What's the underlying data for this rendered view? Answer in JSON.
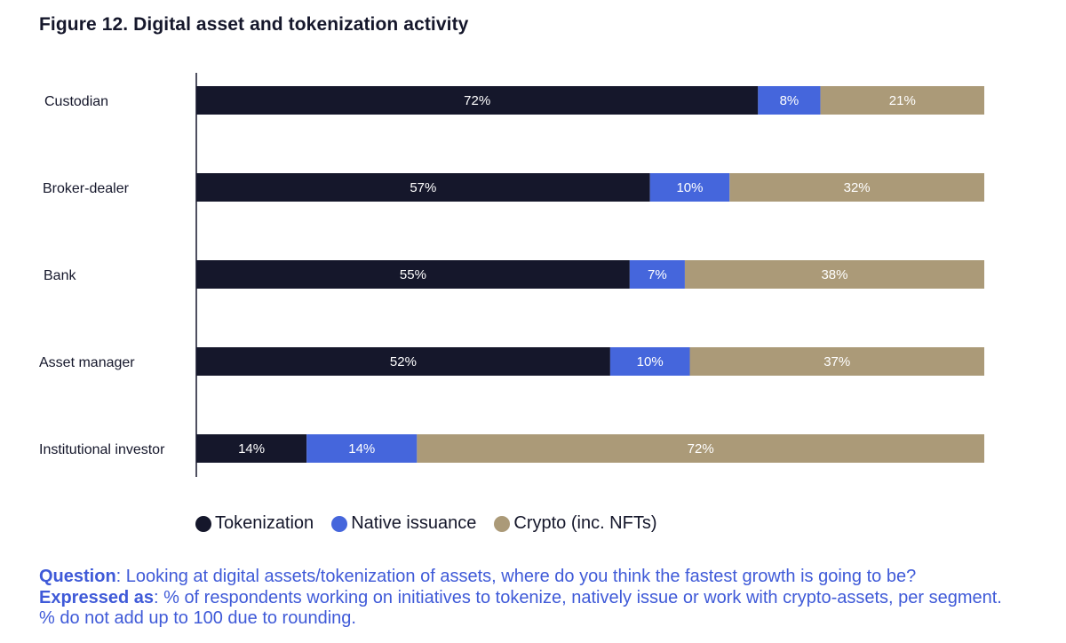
{
  "figure_title": "Figure 12. Digital asset and tokenization activity",
  "colors": {
    "tokenization": "#15172b",
    "native_issuance": "#4566dc",
    "crypto": "#ab9a78",
    "axis": "#15172b",
    "note_text": "#3f5ad8"
  },
  "legend": [
    {
      "label": "Tokenization",
      "color": "#15172b"
    },
    {
      "label": "Native issuance",
      "color": "#4566dc"
    },
    {
      "label": "Crypto (inc. NFTs)",
      "color": "#ab9a78"
    }
  ],
  "note": {
    "question_label": "Question",
    "question_text": ": Looking at digital assets/tokenization of assets, where do you think the fastest growth is going to be? ",
    "expressed_label": "Expressed as",
    "expressed_text": ": % of respondents working on initiatives to tokenize, natively issue or work with crypto-assets, per segment. % do not add up to 100 due to rounding."
  },
  "chart_data": {
    "type": "bar",
    "orientation": "horizontal",
    "stacked": true,
    "title": "Figure 12. Digital asset and tokenization activity",
    "categories": [
      "Custodian",
      "Broker-dealer",
      "Bank",
      "Asset manager",
      "Institutional investor"
    ],
    "series": [
      {
        "name": "Tokenization",
        "values": [
          72,
          57,
          55,
          52,
          14
        ],
        "labels": [
          "72%",
          "57%",
          "55%",
          "52%",
          "14%"
        ]
      },
      {
        "name": "Native issuance",
        "values": [
          8,
          10,
          7,
          10,
          14
        ],
        "labels": [
          "8%",
          "10%",
          "7%",
          "10%",
          "14%"
        ]
      },
      {
        "name": "Crypto (inc. NFTs)",
        "values": [
          21,
          32,
          38,
          37,
          72
        ],
        "labels": [
          "21%",
          "32%",
          "38%",
          "37%",
          "72%"
        ]
      }
    ],
    "xlim": [
      0,
      100
    ],
    "grid": false,
    "legend_position": "bottom"
  }
}
